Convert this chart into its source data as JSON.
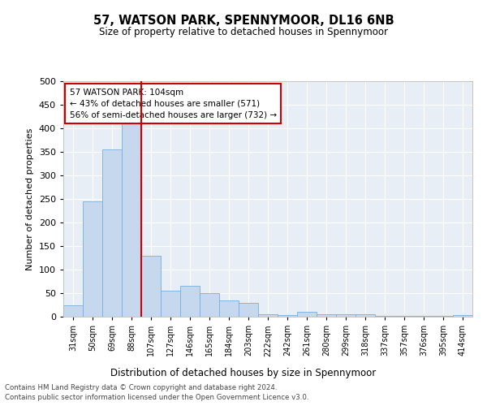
{
  "title": "57, WATSON PARK, SPENNYMOOR, DL16 6NB",
  "subtitle": "Size of property relative to detached houses in Spennymoor",
  "xlabel": "Distribution of detached houses by size in Spennymoor",
  "ylabel": "Number of detached properties",
  "categories": [
    "31sqm",
    "50sqm",
    "69sqm",
    "88sqm",
    "107sqm",
    "127sqm",
    "146sqm",
    "165sqm",
    "184sqm",
    "203sqm",
    "222sqm",
    "242sqm",
    "261sqm",
    "280sqm",
    "299sqm",
    "318sqm",
    "337sqm",
    "357sqm",
    "376sqm",
    "395sqm",
    "414sqm"
  ],
  "values": [
    25,
    245,
    355,
    410,
    130,
    55,
    65,
    50,
    35,
    30,
    5,
    3,
    10,
    5,
    5,
    5,
    2,
    2,
    2,
    2,
    3
  ],
  "bar_color": "#c5d8ee",
  "bar_edge_color": "#7aadd4",
  "property_line_index": 4,
  "property_line_color": "#cc0000",
  "annotation_line1": "57 WATSON PARK: 104sqm",
  "annotation_line2": "← 43% of detached houses are smaller (571)",
  "annotation_line3": "56% of semi-detached houses are larger (732) →",
  "annotation_box_color": "#ffffff",
  "annotation_box_edge_color": "#cc0000",
  "ylim": [
    0,
    500
  ],
  "yticks": [
    0,
    50,
    100,
    150,
    200,
    250,
    300,
    350,
    400,
    450,
    500
  ],
  "footnote_line1": "Contains HM Land Registry data © Crown copyright and database right 2024.",
  "footnote_line2": "Contains public sector information licensed under the Open Government Licence v3.0.",
  "bg_color": "#e8eef5",
  "grid_color": "#ffffff",
  "fig_bg_color": "#ffffff"
}
